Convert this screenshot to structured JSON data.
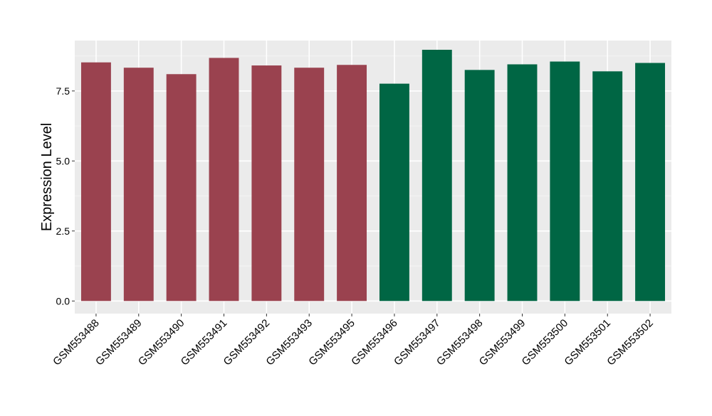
{
  "chart_data": {
    "type": "bar",
    "title": "",
    "xlabel": "",
    "ylabel": "Expression Level",
    "ylim": [
      -0.45,
      9.3
    ],
    "yticks": [
      0.0,
      2.5,
      5.0,
      7.5
    ],
    "ytick_labels": [
      "0.0",
      "2.5",
      "5.0",
      "7.5"
    ],
    "grid": true,
    "legend": "none",
    "colors": {
      "group_1": "#9a424f",
      "group_2": "#006644",
      "panel_bg": "#ebebeb",
      "grid_major": "#ffffff",
      "grid_minor": "#f4f4f4",
      "axis_text": "#000000"
    },
    "categories": [
      "GSM553488",
      "GSM553489",
      "GSM553490",
      "GSM553491",
      "GSM553492",
      "GSM553493",
      "GSM553495",
      "GSM553496",
      "GSM553497",
      "GSM553498",
      "GSM553499",
      "GSM553500",
      "GSM553501",
      "GSM553502"
    ],
    "values": [
      8.52,
      8.33,
      8.1,
      8.68,
      8.41,
      8.33,
      8.43,
      7.76,
      8.97,
      8.25,
      8.45,
      8.55,
      8.2,
      8.5
    ],
    "bar_groups": [
      1,
      1,
      1,
      1,
      1,
      1,
      1,
      2,
      2,
      2,
      2,
      2,
      2,
      2
    ]
  }
}
